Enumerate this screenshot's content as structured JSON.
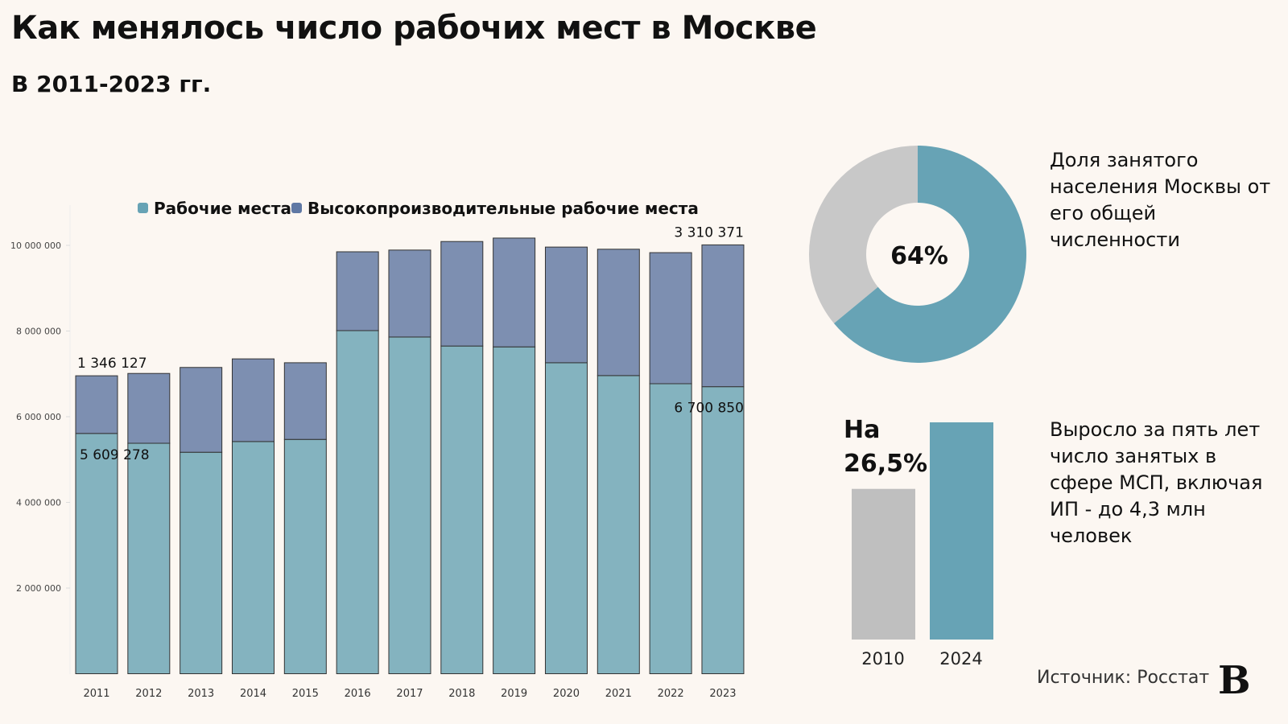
{
  "header": {
    "title": "Как менялось число рабочих мест в Москве",
    "subtitle": "В 2011-2023 гг."
  },
  "colors": {
    "background": "#fcf7f2",
    "jobs": "#84b3bf",
    "high_productivity": "#7d8fb1",
    "legend_jobs": "#67a3b5",
    "legend_high_productivity": "#5f78a4",
    "donut_share": "#67a3b5",
    "donut_rest": "#c8c8c8",
    "bar_2010": "#bfbfbf",
    "bar_2024": "#67a3b5"
  },
  "chart_data": [
    {
      "type": "bar",
      "stacked": true,
      "categories": [
        "2011",
        "2012",
        "2013",
        "2014",
        "2015",
        "2016",
        "2017",
        "2018",
        "2019",
        "2020",
        "2021",
        "2022",
        "2023"
      ],
      "series": [
        {
          "name": "Рабочие места",
          "values": [
            5609278,
            5380000,
            5170000,
            5420000,
            5470000,
            8010000,
            7860000,
            7650000,
            7630000,
            7260000,
            6960000,
            6770000,
            6700850
          ]
        },
        {
          "name": "Высокопроизводительные рабочие места",
          "values": [
            1346127,
            1630000,
            1980000,
            1930000,
            1790000,
            1840000,
            2030000,
            2440000,
            2540000,
            2700000,
            2950000,
            3060000,
            3310371
          ]
        }
      ],
      "data_labels": [
        {
          "category": "2011",
          "series": "Высокопроизводительные рабочие места",
          "text": "1 346 127"
        },
        {
          "category": "2011",
          "series": "Рабочие места",
          "text": "5 609 278"
        },
        {
          "category": "2023",
          "series": "Высокопроизводительные рабочие места",
          "text": "3 310 371"
        },
        {
          "category": "2023",
          "series": "Рабочие места",
          "text": "6 700 850"
        }
      ],
      "yticks": [
        2000000,
        4000000,
        6000000,
        8000000,
        10000000
      ],
      "ytick_labels": [
        "2 000 000",
        "4 000 000",
        "6 000 000",
        "8 000 000",
        "10 000 000"
      ],
      "ylim": [
        0,
        11000000
      ],
      "legend": "top",
      "grid": false
    },
    {
      "type": "pie",
      "donut": true,
      "values": [
        64,
        36
      ],
      "center_label": "64%",
      "caption": "Доля занятого населения Москвы от его общей численности"
    },
    {
      "type": "bar",
      "categories": [
        "2010",
        "2024"
      ],
      "values": [
        100,
        126.5
      ],
      "annotation_line1": "На",
      "annotation_line2": "26,5%",
      "caption": "Выросло за пять лет число занятых в сфере МСП, включая ИП - до 4,3 млн человек"
    }
  ],
  "footer": {
    "source": "Источник: Росстат",
    "logo": "В"
  }
}
